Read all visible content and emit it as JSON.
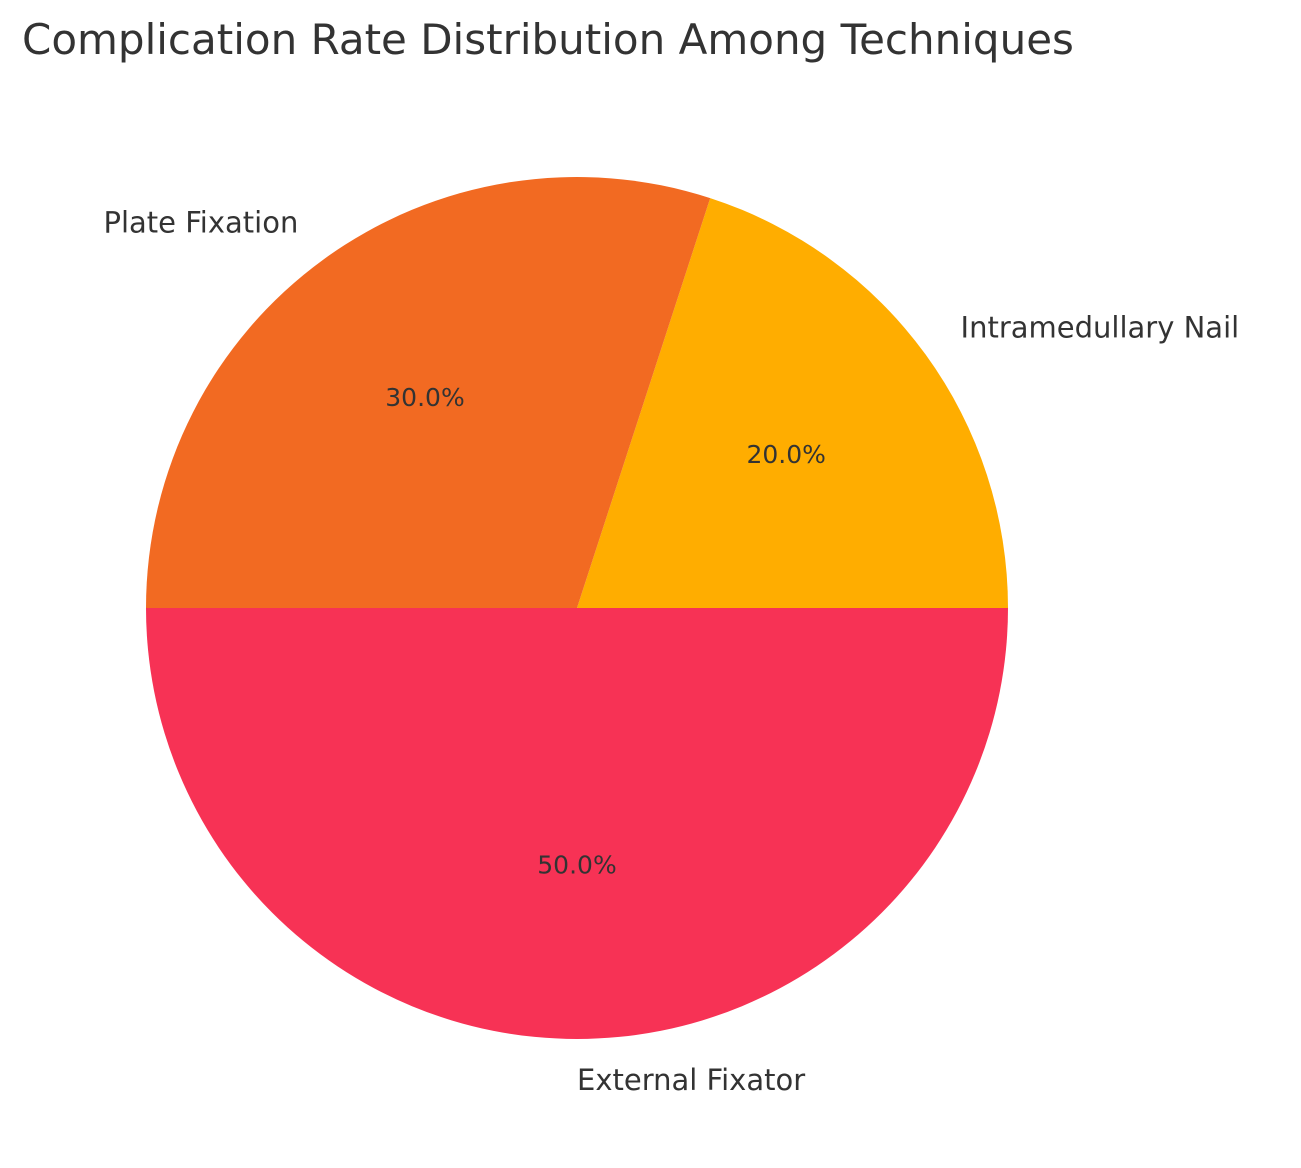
{
  "chart_data": {
    "type": "pie",
    "title": "Complication Rate Distribution Among Techniques",
    "categories": [
      "Intramedullary Nail",
      "Plate Fixation",
      "External Fixator"
    ],
    "values": [
      20,
      30,
      50
    ],
    "percent_labels": [
      "20.0%",
      "30.0%",
      "50.0%"
    ],
    "colors": [
      "#FFAD00",
      "#F26A22",
      "#F73255"
    ],
    "start_angle_deg": 0,
    "direction": "counterclockwise",
    "legend": "none"
  }
}
